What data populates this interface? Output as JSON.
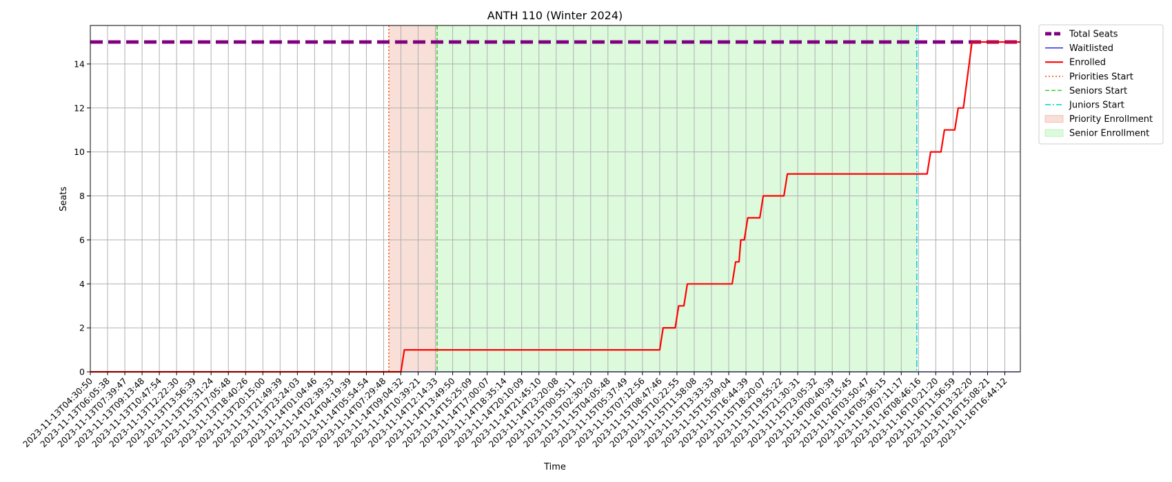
{
  "chart_data": {
    "type": "line",
    "title": "ANTH 110 (Winter 2024)",
    "xlabel": "Time",
    "ylabel": "Seats",
    "ylim": [
      0,
      15.75
    ],
    "yticks": [
      0,
      2,
      4,
      6,
      8,
      10,
      12,
      14
    ],
    "grid": true,
    "legend_position": "outside-top-right",
    "x_tick_labels": [
      "2023-11-13T04:30:50",
      "2023-11-13T06:05:38",
      "2023-11-13T07:39:47",
      "2023-11-13T09:13:48",
      "2023-11-13T10:47:54",
      "2023-11-13T12:22:30",
      "2023-11-13T13:56:39",
      "2023-11-13T15:31:24",
      "2023-11-13T17:05:48",
      "2023-11-13T18:40:26",
      "2023-11-13T20:15:00",
      "2023-11-13T21:49:39",
      "2023-11-13T23:24:03",
      "2023-11-14T01:04:46",
      "2023-11-14T02:39:33",
      "2023-11-14T04:19:39",
      "2023-11-14T05:54:54",
      "2023-11-14T07:29:48",
      "2023-11-14T09:04:32",
      "2023-11-14T10:39:21",
      "2023-11-14T12:14:33",
      "2023-11-14T13:49:50",
      "2023-11-14T15:25:09",
      "2023-11-14T17:00:07",
      "2023-11-14T18:35:14",
      "2023-11-14T20:10:09",
      "2023-11-14T21:45:10",
      "2023-11-14T23:20:08",
      "2023-11-15T00:55:11",
      "2023-11-15T02:30:20",
      "2023-11-15T04:05:48",
      "2023-11-15T05:37:49",
      "2023-11-15T07:12:56",
      "2023-11-15T08:47:46",
      "2023-11-15T10:22:55",
      "2023-11-15T11:58:08",
      "2023-11-15T13:33:33",
      "2023-11-15T15:09:04",
      "2023-11-15T16:44:39",
      "2023-11-15T18:20:07",
      "2023-11-15T19:55:22",
      "2023-11-15T21:30:31",
      "2023-11-15T23:05:32",
      "2023-11-16T00:40:39",
      "2023-11-16T02:15:45",
      "2023-11-16T03:50:47",
      "2023-11-16T05:36:15",
      "2023-11-16T07:11:17",
      "2023-11-16T08:46:16",
      "2023-11-16T10:21:20",
      "2023-11-16T11:56:59",
      "2023-11-16T13:32:20",
      "2023-11-16T15:08:21",
      "2023-11-16T16:44:12"
    ],
    "x_range": [
      0,
      53.9
    ],
    "series": [
      {
        "name": "Total Seats",
        "style": "dashed",
        "color": "#800080",
        "points": [
          [
            0,
            15
          ],
          [
            53.9,
            15
          ]
        ]
      },
      {
        "name": "Waitlisted",
        "style": "solid",
        "color": "#0000ff",
        "points": [
          [
            0,
            0
          ],
          [
            53.9,
            0
          ]
        ]
      },
      {
        "name": "Enrolled",
        "style": "solid",
        "color": "#ff0000",
        "points": [
          [
            0,
            0
          ],
          [
            18,
            0
          ],
          [
            18.2,
            1
          ],
          [
            33,
            1
          ],
          [
            33.2,
            2
          ],
          [
            33.9,
            2
          ],
          [
            34.1,
            3
          ],
          [
            34.4,
            3
          ],
          [
            34.6,
            4
          ],
          [
            37.2,
            4
          ],
          [
            37.4,
            5
          ],
          [
            37.6,
            5
          ],
          [
            37.7,
            6
          ],
          [
            37.9,
            6
          ],
          [
            38.1,
            7
          ],
          [
            38.8,
            7
          ],
          [
            39,
            8
          ],
          [
            40.2,
            8
          ],
          [
            40.4,
            9
          ],
          [
            48.5,
            9
          ],
          [
            48.7,
            10
          ],
          [
            49.3,
            10
          ],
          [
            49.5,
            11
          ],
          [
            50.1,
            11
          ],
          [
            50.3,
            12
          ],
          [
            50.6,
            12
          ],
          [
            51.1,
            15
          ],
          [
            53.9,
            15
          ]
        ]
      }
    ],
    "vertical_lines": [
      {
        "name": "Priorities Start",
        "x": 17.3,
        "color": "#ff4500",
        "style": "dotted"
      },
      {
        "name": "Seniors Start",
        "x": 20.1,
        "color": "#32cd32",
        "style": "dashed"
      },
      {
        "name": "Juniors Start",
        "x": 47.9,
        "color": "#00ced1",
        "style": "dashdot"
      }
    ],
    "shaded_regions": [
      {
        "name": "Priority Enrollment",
        "x0": 17.3,
        "x1": 20.1,
        "color": "#e9967a"
      },
      {
        "name": "Senior Enrollment",
        "x0": 20.1,
        "x1": 47.9,
        "color": "#90ee90"
      }
    ],
    "legend": [
      {
        "label": "Total Seats",
        "kind": "line",
        "color": "#800080",
        "style": "dashed-thick"
      },
      {
        "label": "Waitlisted",
        "kind": "line",
        "color": "#0000ff",
        "style": "solid-thin"
      },
      {
        "label": "Enrolled",
        "kind": "line",
        "color": "#ff0000",
        "style": "solid"
      },
      {
        "label": "Priorities Start",
        "kind": "line",
        "color": "#ff4500",
        "style": "dotted"
      },
      {
        "label": "Seniors Start",
        "kind": "line",
        "color": "#32cd32",
        "style": "dashed"
      },
      {
        "label": "Juniors Start",
        "kind": "line",
        "color": "#00ced1",
        "style": "dashdot"
      },
      {
        "label": "Priority Enrollment",
        "kind": "patch",
        "color": "#e9967a"
      },
      {
        "label": "Senior Enrollment",
        "kind": "patch",
        "color": "#90ee90"
      }
    ]
  }
}
